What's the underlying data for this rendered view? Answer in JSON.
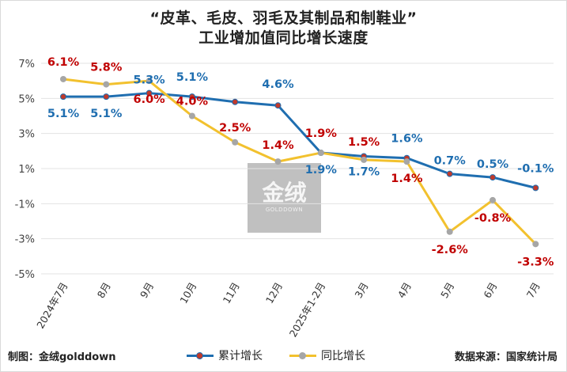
{
  "chart_data": {
    "type": "line",
    "title_line1": "“皮革、毛皮、羽毛及其制品和制鞋业”",
    "title_line2": "工业增加值同比增长速度",
    "categories": [
      "2024年7月",
      "8月",
      "9月",
      "10月",
      "11月",
      "12月",
      "2025年1-2月",
      "3月",
      "4月",
      "5月",
      "6月",
      "7月"
    ],
    "yticks": [
      "7%",
      "5%",
      "3%",
      "1%",
      "-1%",
      "-3%",
      "-5%"
    ],
    "ylim": [
      -5,
      7
    ],
    "grid": true,
    "series": [
      {
        "name": "累计增长",
        "color": "#1f6eb0",
        "marker_color": "#c0392b",
        "label_color": "#1f6eb0",
        "values": [
          5.1,
          5.1,
          5.3,
          5.1,
          4.8,
          4.6,
          1.9,
          1.7,
          1.6,
          0.7,
          0.5,
          -0.1
        ],
        "labels": [
          "5.1%",
          "5.1%",
          "5.3%",
          "5.1%",
          "",
          "4.6%",
          "1.9%",
          "1.7%",
          "1.6%",
          "0.7%",
          "0.5%",
          "-0.1%"
        ]
      },
      {
        "name": "同比增长",
        "color": "#f2c12e",
        "marker_color": "#a6a6a6",
        "label_color": "#c00000",
        "values": [
          6.1,
          5.8,
          6.0,
          4.0,
          2.5,
          1.4,
          1.9,
          1.5,
          1.4,
          -2.6,
          -0.8,
          -3.3
        ],
        "labels": [
          "6.1%",
          "5.8%",
          "6.0%",
          "4.0%",
          "2.5%",
          "1.4%",
          "1.9%",
          "1.5%",
          "1.4%",
          "-2.6%",
          "-0.8%",
          "-3.3%"
        ]
      }
    ]
  },
  "footer": {
    "credit": "制图：金绒golddown",
    "source": "数据来源：国家统计局"
  },
  "watermark": {
    "text": "金绒",
    "sub": "GOLDDOWN"
  }
}
